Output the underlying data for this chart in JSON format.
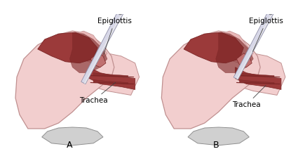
{
  "background_color": "#ffffff",
  "skin_light": "#f2cece",
  "skin_medium": "#e8b8b8",
  "skin_outline": "#c09090",
  "throat_red": "#9b3a3a",
  "throat_dark": "#7a2525",
  "trachea_stripe": "#8b3030",
  "tongue_color": "#c07070",
  "scope_body": "#d8d8e8",
  "scope_dark": "#9090a8",
  "scope_tip": "#b0b0c0",
  "pillow_color": "#b8b8b8",
  "pillow_light": "#d0d0d0",
  "outline_color": "#505050",
  "neck_shadow": "#e0aaaa",
  "label_A": "A",
  "label_B": "B",
  "text_epiglottis": "Epiglottis",
  "text_trachea": "Trachea",
  "font_size_labels": 7.5,
  "font_size_AB": 9,
  "fig_width": 4.15,
  "fig_height": 2.39
}
